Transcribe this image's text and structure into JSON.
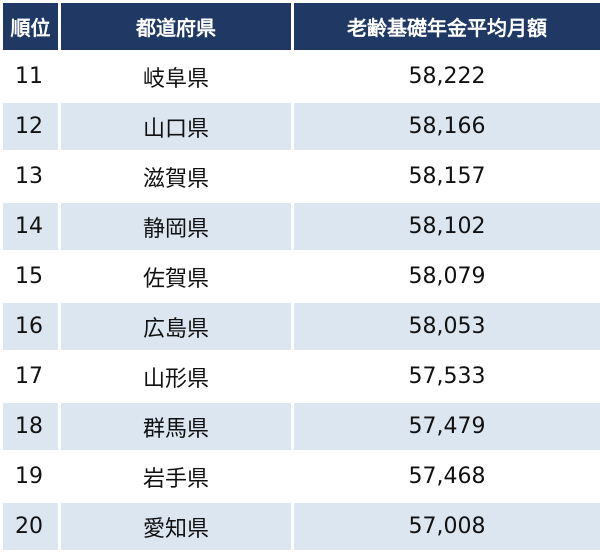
{
  "table": {
    "header": [
      "順位",
      "都道府県",
      "老齢基礎年金平均月額"
    ],
    "rows": [
      [
        "11",
        "岐阜県",
        "58,222"
      ],
      [
        "12",
        "山口県",
        "58,166"
      ],
      [
        "13",
        "滋賀県",
        "58,157"
      ],
      [
        "14",
        "静岡県",
        "58,102"
      ],
      [
        "15",
        "佐賀県",
        "58,079"
      ],
      [
        "16",
        "広島県",
        "58,053"
      ],
      [
        "17",
        "山形県",
        "57,533"
      ],
      [
        "18",
        "群馬県",
        "57,479"
      ],
      [
        "19",
        "岩手県",
        "57,468"
      ],
      [
        "20",
        "愛知県",
        "57,008"
      ]
    ]
  }
}
